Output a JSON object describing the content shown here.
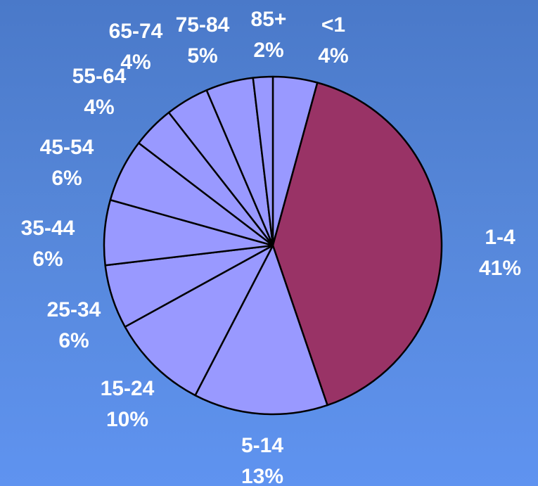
{
  "chart_data": {
    "type": "pie",
    "title": "",
    "start_angle_deg": 0,
    "direction": "clockwise",
    "colors": {
      "default": "#9999ff",
      "highlight": "#993366",
      "outline": "#000000",
      "label": "#ffffff"
    },
    "slices": [
      {
        "label": "<1",
        "percent_text": "4%",
        "value": 4.3,
        "highlight": false
      },
      {
        "label": "1-4",
        "percent_text": "41%",
        "value": 41.0,
        "highlight": true
      },
      {
        "label": "5-14",
        "percent_text": "13%",
        "value": 13.0,
        "highlight": false
      },
      {
        "label": "15-24",
        "percent_text": "10%",
        "value": 9.5,
        "highlight": false
      },
      {
        "label": "25-34",
        "percent_text": "6%",
        "value": 6.2,
        "highlight": false
      },
      {
        "label": "35-44",
        "percent_text": "6%",
        "value": 6.3,
        "highlight": false
      },
      {
        "label": "45-54",
        "percent_text": "6%",
        "value": 6.1,
        "highlight": false
      },
      {
        "label": "55-64",
        "percent_text": "4%",
        "value": 4.1,
        "highlight": false
      },
      {
        "label": "65-74",
        "percent_text": "4%",
        "value": 4.2,
        "highlight": false
      },
      {
        "label": "75-84",
        "percent_text": "5%",
        "value": 4.6,
        "highlight": false
      },
      {
        "label": "85+",
        "percent_text": "2%",
        "value": 1.9,
        "highlight": false
      }
    ]
  }
}
